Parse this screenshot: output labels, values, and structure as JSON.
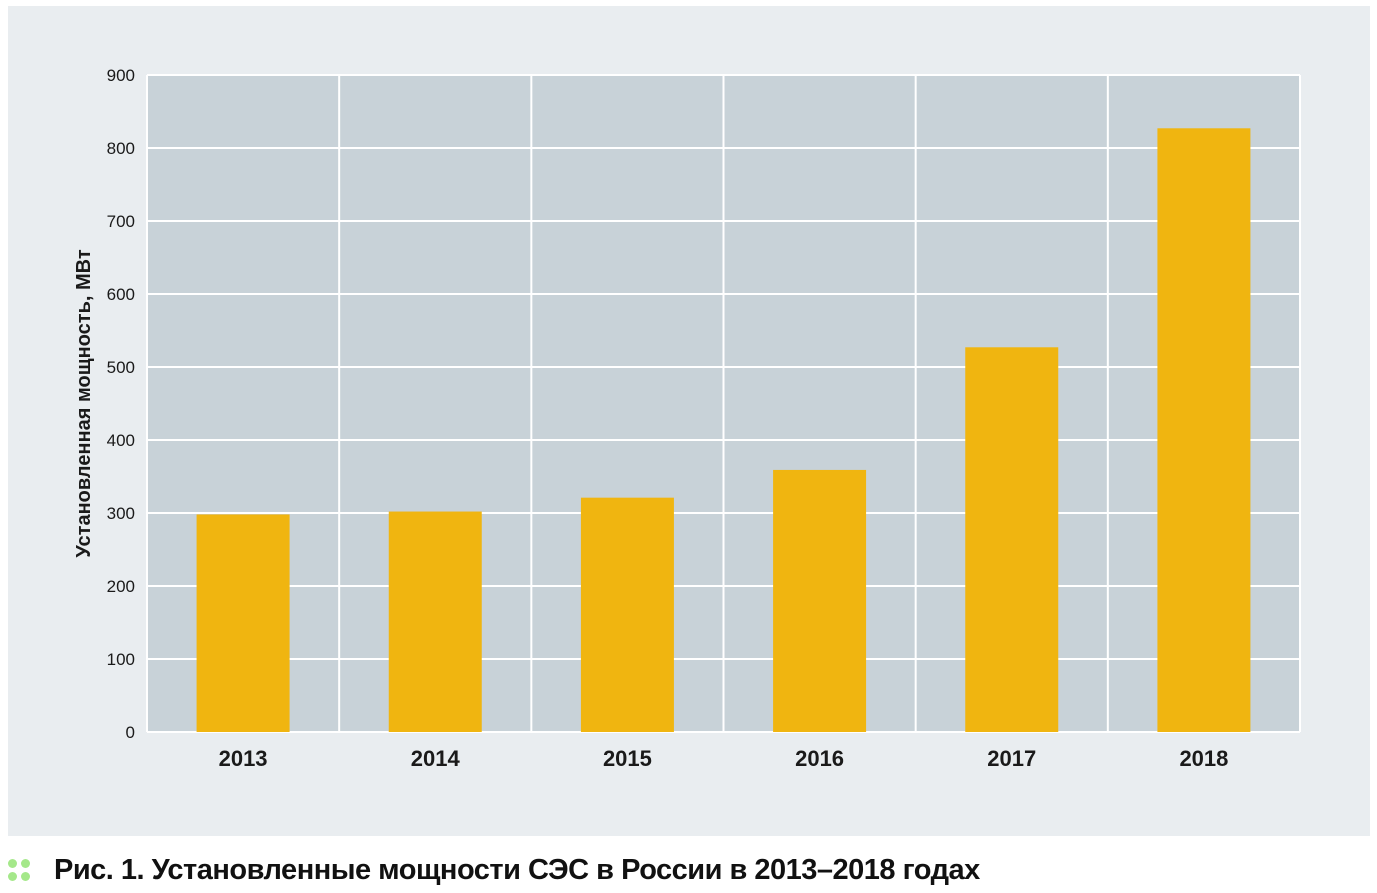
{
  "chart_data": {
    "type": "bar",
    "categories": [
      "2013",
      "2014",
      "2015",
      "2016",
      "2017",
      "2018"
    ],
    "values": [
      298,
      302,
      321,
      359,
      527,
      827
    ],
    "title": "",
    "xlabel": "",
    "ylabel": "Установленная мощность, МВт",
    "ylim": [
      0,
      900
    ],
    "yticks": [
      0,
      100,
      200,
      300,
      400,
      500,
      600,
      700,
      800,
      900
    ],
    "grid": true,
    "colors": {
      "bar": "#f0b510",
      "plot_bg": "#c8d2d8",
      "panel_bg": "#e9edf0",
      "grid": "#ffffff"
    }
  },
  "caption": {
    "label": "Рис. 1.",
    "text": "Установленные мощности СЭС в России в 2013–2018 годах",
    "icon": "four-dots-icon",
    "icon_color": "#a5e88a"
  }
}
